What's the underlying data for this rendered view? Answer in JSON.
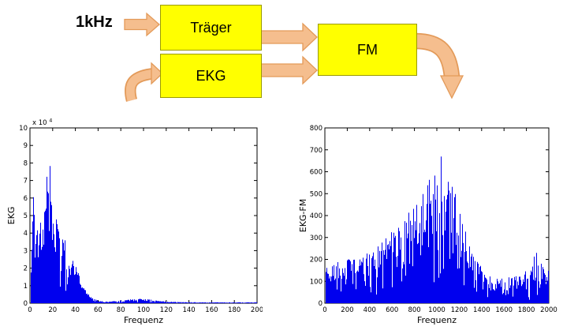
{
  "diagram": {
    "input_label": "1kHz",
    "boxes": [
      {
        "id": "traeger",
        "label": "Träger"
      },
      {
        "id": "ekg",
        "label": "EKG"
      },
      {
        "id": "fm",
        "label": "FM"
      }
    ],
    "colors": {
      "box_fill": "#ffff00",
      "box_border": "#9a9a00",
      "arrow_fill": "#f5be8e",
      "arrow_border": "#e39a59"
    }
  },
  "chart_data": [
    {
      "type": "line",
      "name": "ekg-spectrum",
      "title": "",
      "xlabel": "Frequenz",
      "ylabel": "EKG",
      "offset_label": {
        "text": "x 10",
        "exponent": "4"
      },
      "xlim": [
        0,
        200
      ],
      "ylim": [
        0,
        10
      ],
      "xticks": [
        0,
        20,
        40,
        60,
        80,
        100,
        120,
        140,
        160,
        180,
        200
      ],
      "yticks": [
        0,
        1,
        2,
        3,
        4,
        5,
        6,
        7,
        8,
        9,
        10
      ],
      "line_color": "#0000ee",
      "grid": false,
      "envelope": [
        [
          0,
          1.0
        ],
        [
          1,
          3.0
        ],
        [
          2,
          7.2
        ],
        [
          3,
          6.5
        ],
        [
          4,
          4.0
        ],
        [
          6,
          4.5
        ],
        [
          8,
          5.0
        ],
        [
          10,
          4.5
        ],
        [
          12,
          5.0
        ],
        [
          14,
          7.5
        ],
        [
          15,
          8.7
        ],
        [
          17,
          8.6
        ],
        [
          19,
          7.0
        ],
        [
          21,
          5.5
        ],
        [
          24,
          5.0
        ],
        [
          27,
          4.2
        ],
        [
          30,
          4.0
        ],
        [
          33,
          3.0
        ],
        [
          36,
          2.6
        ],
        [
          40,
          2.2
        ],
        [
          44,
          1.4
        ],
        [
          48,
          0.8
        ],
        [
          52,
          0.45
        ],
        [
          56,
          0.25
        ],
        [
          60,
          0.15
        ],
        [
          65,
          0.1
        ],
        [
          70,
          0.1
        ],
        [
          75,
          0.12
        ],
        [
          80,
          0.15
        ],
        [
          85,
          0.2
        ],
        [
          90,
          0.25
        ],
        [
          95,
          0.25
        ],
        [
          100,
          0.25
        ],
        [
          105,
          0.22
        ],
        [
          110,
          0.18
        ],
        [
          115,
          0.12
        ],
        [
          120,
          0.1
        ],
        [
          130,
          0.07
        ],
        [
          140,
          0.06
        ],
        [
          150,
          0.05
        ],
        [
          160,
          0.05
        ],
        [
          170,
          0.05
        ],
        [
          180,
          0.05
        ],
        [
          190,
          0.05
        ],
        [
          200,
          0.06
        ]
      ]
    },
    {
      "type": "line",
      "name": "ekg-fm-spectrum",
      "title": "",
      "xlabel": "Frequenz",
      "ylabel": "EKG-FM",
      "offset_label": null,
      "xlim": [
        0,
        2000
      ],
      "ylim": [
        0,
        800
      ],
      "xticks": [
        0,
        200,
        400,
        600,
        800,
        1000,
        1200,
        1400,
        1600,
        1800,
        2000
      ],
      "yticks": [
        0,
        100,
        200,
        300,
        400,
        500,
        600,
        700,
        800
      ],
      "line_color": "#0000ee",
      "grid": false,
      "envelope": [
        [
          0,
          200
        ],
        [
          50,
          180
        ],
        [
          100,
          190
        ],
        [
          150,
          180
        ],
        [
          200,
          200
        ],
        [
          250,
          200
        ],
        [
          300,
          210
        ],
        [
          350,
          230
        ],
        [
          400,
          240
        ],
        [
          450,
          260
        ],
        [
          500,
          280
        ],
        [
          550,
          300
        ],
        [
          600,
          330
        ],
        [
          650,
          350
        ],
        [
          700,
          380
        ],
        [
          750,
          420
        ],
        [
          800,
          450
        ],
        [
          850,
          480
        ],
        [
          900,
          540
        ],
        [
          950,
          620
        ],
        [
          1000,
          710
        ],
        [
          1030,
          690
        ],
        [
          1060,
          620
        ],
        [
          1100,
          570
        ],
        [
          1150,
          520
        ],
        [
          1200,
          430
        ],
        [
          1250,
          340
        ],
        [
          1300,
          270
        ],
        [
          1350,
          230
        ],
        [
          1400,
          170
        ],
        [
          1450,
          130
        ],
        [
          1500,
          115
        ],
        [
          1550,
          110
        ],
        [
          1600,
          115
        ],
        [
          1650,
          125
        ],
        [
          1700,
          130
        ],
        [
          1750,
          140
        ],
        [
          1800,
          150
        ],
        [
          1850,
          180
        ],
        [
          1880,
          270
        ],
        [
          1910,
          200
        ],
        [
          1950,
          160
        ],
        [
          2000,
          150
        ]
      ]
    }
  ]
}
